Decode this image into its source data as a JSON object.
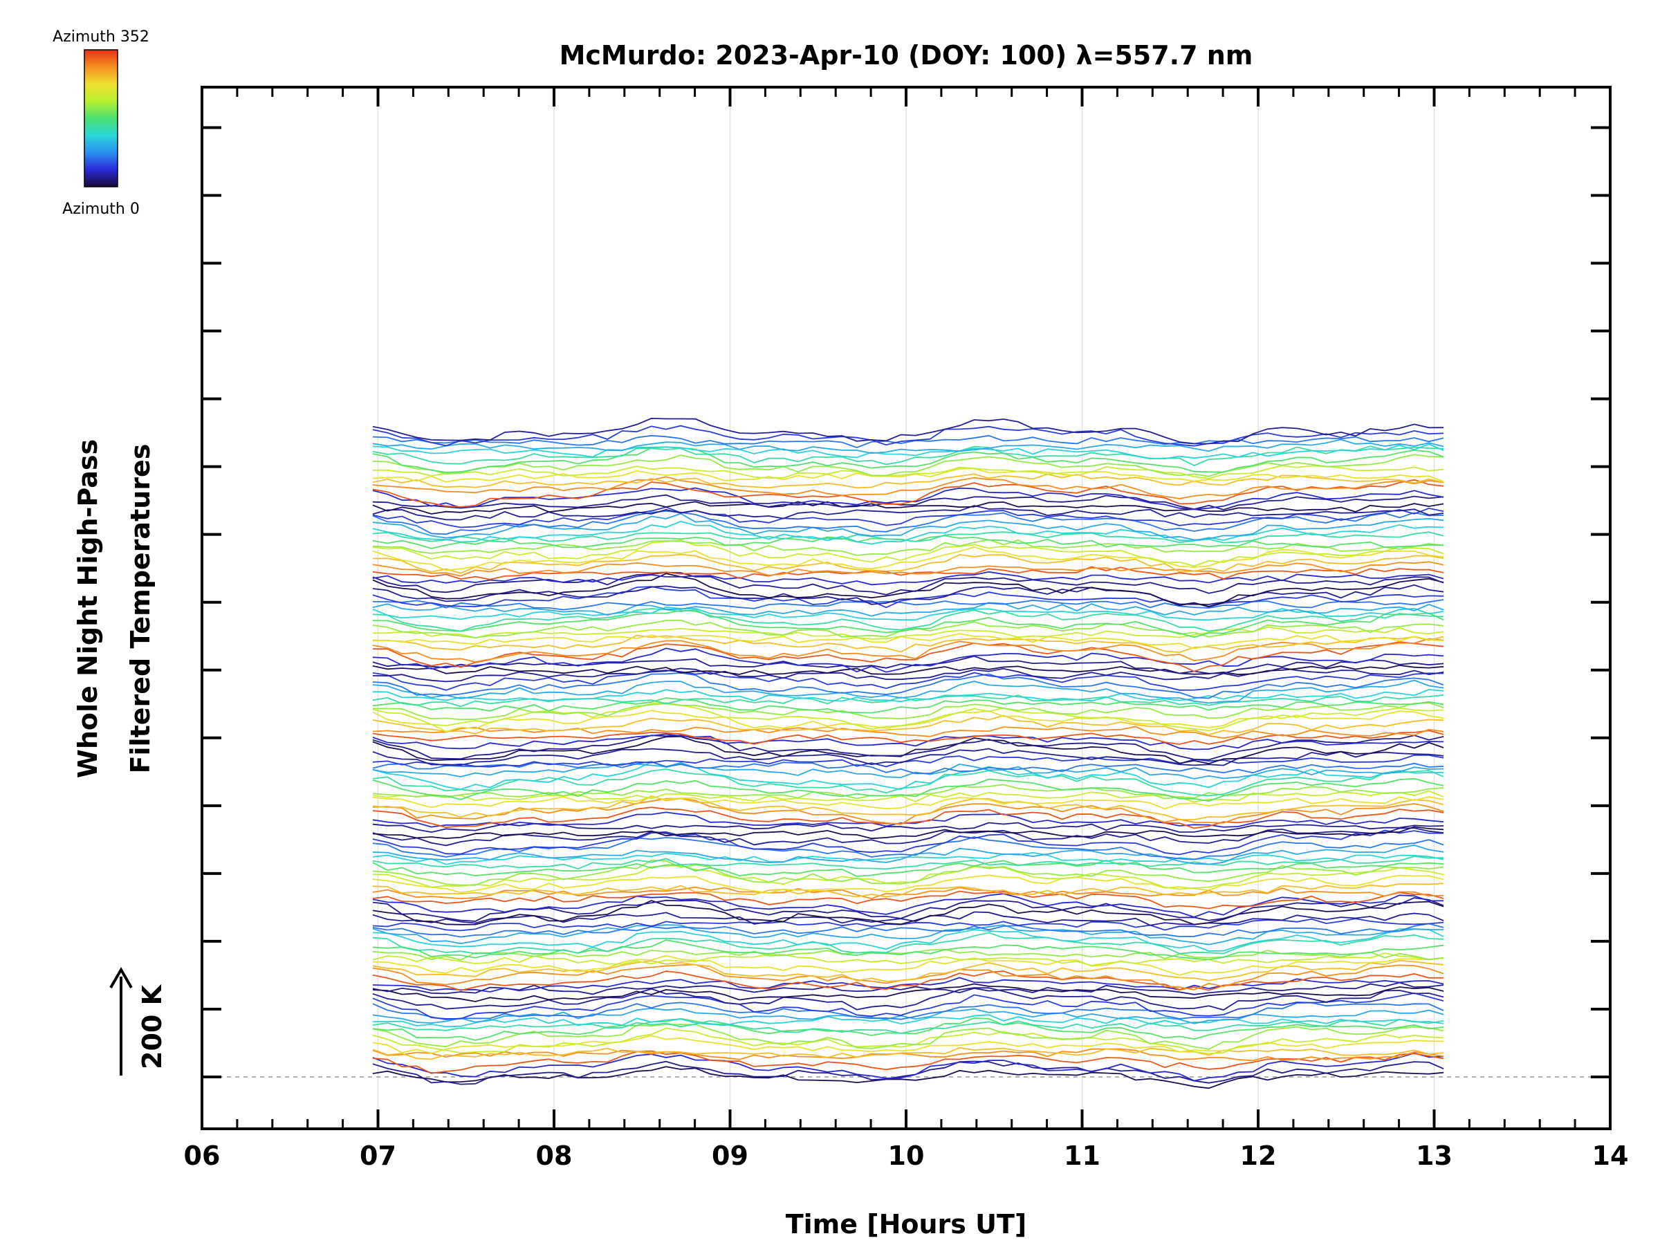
{
  "chart_data": {
    "type": "line",
    "title": "McMurdo: 2023-Apr-10 (DOY: 100) λ=557.7 nm",
    "xlabel": "Time [Hours UT]",
    "ylabel_line1": "Whole Night High-Pass",
    "ylabel_line2": "Filtered Temperatures",
    "xlim": [
      6,
      14
    ],
    "x_ticks": [
      "06",
      "07",
      "08",
      "09",
      "10",
      "11",
      "12",
      "13",
      "14"
    ],
    "x_data_range": [
      6.97,
      13.13
    ],
    "scale_label": "200 K",
    "colorbar": {
      "top_label": "Azimuth 352",
      "bottom_label": "Azimuth 0",
      "colors": [
        "#1a0a3a",
        "#2a2ad8",
        "#2a8ff0",
        "#2ad8d8",
        "#4ce070",
        "#b8f030",
        "#f0e030",
        "#f59020",
        "#e83018"
      ]
    },
    "n_traces": 128,
    "trace_spacing_K": 7.5,
    "grid": true,
    "baseline_dashed": true
  }
}
